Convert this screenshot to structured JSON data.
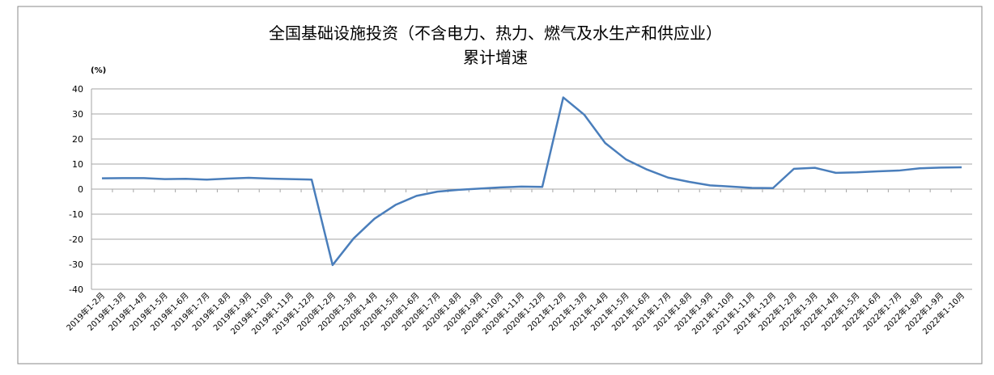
{
  "chart_data": {
    "type": "line",
    "title": [
      "全国基础设施投资（不含电力、热力、燃气及水生产和供应业）",
      "累计增速"
    ],
    "y_unit": "(%)",
    "categories": [
      "2019年1-2月",
      "2019年1-3月",
      "2019年1-4月",
      "2019年1-5月",
      "2019年1-6月",
      "2019年1-7月",
      "2019年1-8月",
      "2019年1-9月",
      "2019年1-10月",
      "2019年1-11月",
      "2019年1-12月",
      "2020年1-2月",
      "2020年1-3月",
      "2020年1-4月",
      "2020年1-5月",
      "2020年1-6月",
      "2020年1-7月",
      "2020年1-8月",
      "2020年1-9月",
      "2020年1-10月",
      "2020年1-11月",
      "2020年1-12月",
      "2021年1-2月",
      "2021年1-3月",
      "2021年1-4月",
      "2021年1-5月",
      "2021年1-6月",
      "2021年1-7月",
      "2021年1-8月",
      "2021年1-9月",
      "2021年1-10月",
      "2021年1-11月",
      "2021年1-12月",
      "2022年1-2月",
      "2022年1-3月",
      "2022年1-4月",
      "2022年1-5月",
      "2022年1-6月",
      "2022年1-7月",
      "2022年1-8月",
      "2022年1-9月",
      "2022年1-10月"
    ],
    "values": [
      4.3,
      4.4,
      4.4,
      4.0,
      4.1,
      3.8,
      4.2,
      4.5,
      4.2,
      4.0,
      3.8,
      -30.3,
      -19.7,
      -11.8,
      -6.3,
      -2.7,
      -1.0,
      -0.3,
      0.2,
      0.7,
      1.0,
      0.9,
      36.6,
      29.7,
      18.4,
      11.8,
      7.8,
      4.6,
      2.9,
      1.5,
      1.0,
      0.5,
      0.4,
      8.1,
      8.5,
      6.5,
      6.7,
      7.1,
      7.4,
      8.3,
      8.6,
      8.7
    ],
    "color": "#4a7ebb",
    "ylim": [
      -40,
      40
    ],
    "yticks": [
      -40,
      -30,
      -20,
      -10,
      0,
      10,
      20,
      30,
      40
    ],
    "grid": true
  }
}
